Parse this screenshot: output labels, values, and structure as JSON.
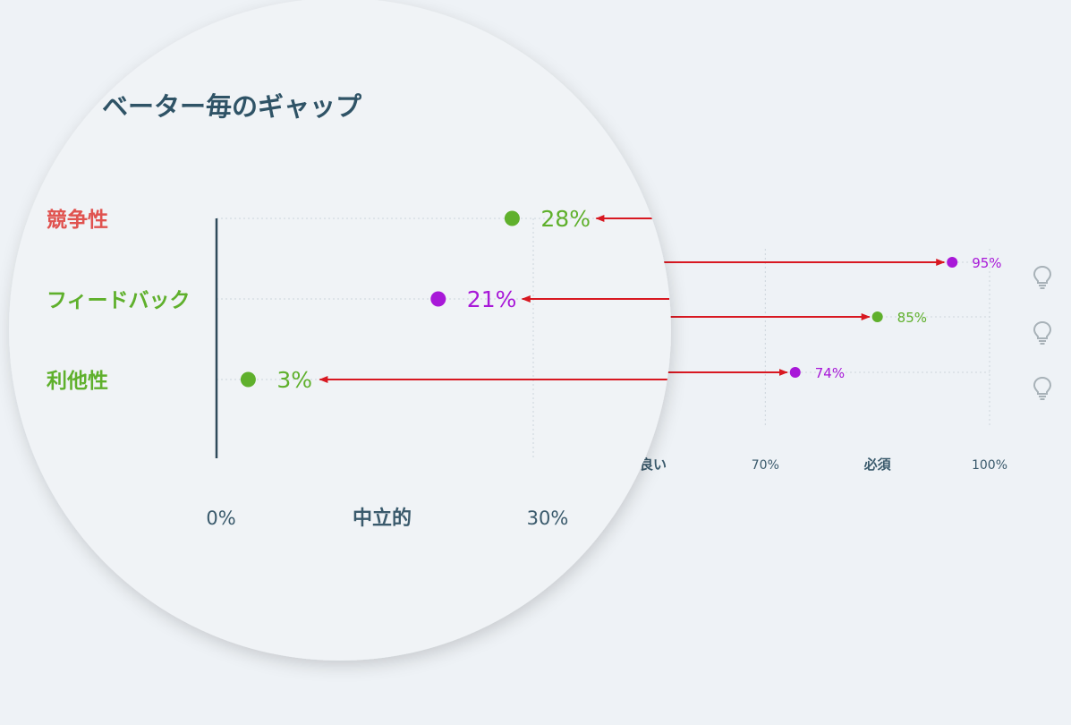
{
  "colors": {
    "background": "#eef2f6",
    "lens_fill": "#f0f3f6",
    "title_text": "#2f5366",
    "axis_text": "#3a5a6c",
    "green": "#5fb02c",
    "purple": "#a818d8",
    "red_label": "#e0524f",
    "arrow_red": "#d81821",
    "grid": "#cdd5dc",
    "axis_line": "#2f4a5a",
    "bulb": "#a8b2b8"
  },
  "icons": {
    "bulb": "lightbulb-icon"
  },
  "chart_data": [
    {
      "id": "zoomed",
      "type": "scatter",
      "title": "ベーター毎のギャップ",
      "categories": [
        "競争性",
        "フィードバック",
        "利他性"
      ],
      "category_colors": [
        "red_label",
        "green",
        "green"
      ],
      "values": [
        28,
        21,
        3
      ],
      "value_labels": [
        "28%",
        "21%",
        "3%"
      ],
      "point_colors": [
        "green",
        "purple",
        "green"
      ],
      "x_ticks": [
        {
          "value": 0,
          "label": "0%"
        },
        {
          "value": 15,
          "label": "中立的"
        },
        {
          "value": 30,
          "label": "30%"
        }
      ],
      "xlim": [
        0,
        30
      ],
      "grid": true
    },
    {
      "id": "background",
      "type": "scatter",
      "categories": [
        "競争性",
        "フィードバック",
        "利他性"
      ],
      "values": [
        95,
        85,
        74
      ],
      "value_labels": [
        "95%",
        "85%",
        "74%"
      ],
      "point_colors": [
        "purple",
        "green",
        "purple"
      ],
      "x_ticks": [
        {
          "value": 55,
          "label": "良い"
        },
        {
          "value": 70,
          "label": "70%"
        },
        {
          "value": 85,
          "label": "必須"
        },
        {
          "value": 100,
          "label": "100%"
        }
      ],
      "xlim": [
        55,
        100
      ],
      "grid": true
    }
  ]
}
